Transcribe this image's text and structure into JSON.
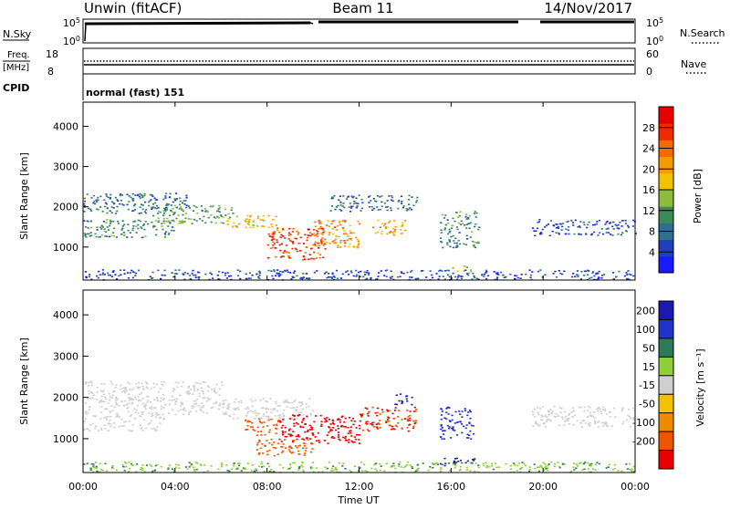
{
  "header": {
    "title_left": "Unwin (fitACF)",
    "title_center": "Beam 11",
    "title_right": "14/Nov/2017"
  },
  "strips": {
    "nsky_label": "N.Sky",
    "nsky_ticks": [
      "10^5",
      "10^0"
    ],
    "nsky_right_ticks": [
      "10^5",
      "10^0"
    ],
    "nsearch_label": "N.Search",
    "freq_label": "Freq.",
    "freq_unit": "[MHz]",
    "freq_ticks": [
      "18",
      "8"
    ],
    "nave_ticks": [
      "60",
      "0"
    ],
    "nave_label": "Nave",
    "cpid_label": "CPID",
    "cpid_value": "normal (fast) 151"
  },
  "colors": {
    "power_scale": [
      "#1a1aff",
      "#1f3fbf",
      "#2e6f8e",
      "#3a8a5a",
      "#8bbd3a",
      "#f2c200",
      "#f59a00",
      "#f46a00",
      "#ee2a00",
      "#e60000"
    ],
    "velocity_scale": [
      "#1a1ab0",
      "#2233cc",
      "#2c7a5a",
      "#8fcf3a",
      "#cfcfcf",
      "#f5c000",
      "#f28a00",
      "#ee5500",
      "#e60000"
    ]
  },
  "chart_data": [
    {
      "type": "heatmap",
      "panel": "power",
      "ylabel": "Slant Range [km]",
      "xlabel": "",
      "ylim": [
        180,
        4600
      ],
      "yticks": [
        "4000",
        "3000",
        "2000",
        "1000"
      ],
      "colorbar_label": "Power [dB]",
      "colorbar_ticks": [
        "28",
        "24",
        "20",
        "16",
        "12",
        "8",
        "4"
      ],
      "colorbar_range": [
        0,
        32
      ],
      "bands": [
        {
          "t0": 0.0,
          "t1": 4.5,
          "r0": 1850,
          "r1": 2350,
          "value": 8
        },
        {
          "t0": 0.0,
          "t1": 4.0,
          "r0": 1250,
          "r1": 1700,
          "value": 10
        },
        {
          "t0": 3.0,
          "t1": 6.5,
          "r0": 1600,
          "r1": 2050,
          "value": 12
        },
        {
          "t0": 6.0,
          "t1": 8.5,
          "r0": 1500,
          "r1": 1800,
          "value": 18
        },
        {
          "t0": 8.0,
          "t1": 10.5,
          "r0": 700,
          "r1": 1500,
          "value": 26
        },
        {
          "t0": 10.0,
          "t1": 12.0,
          "r0": 1000,
          "r1": 1700,
          "value": 22
        },
        {
          "t0": 10.5,
          "t1": 14.5,
          "r0": 1900,
          "r1": 2300,
          "value": 8
        },
        {
          "t0": 12.5,
          "t1": 14.0,
          "r0": 1300,
          "r1": 1700,
          "value": 20
        },
        {
          "t0": 15.5,
          "t1": 17.2,
          "r0": 1000,
          "r1": 1900,
          "value": 10
        },
        {
          "t0": 19.5,
          "t1": 24.0,
          "r0": 1300,
          "r1": 1700,
          "value": 6
        },
        {
          "t0": 16.0,
          "t1": 17.0,
          "r0": 350,
          "r1": 550,
          "value": 14
        },
        {
          "t0": 0.0,
          "t1": 24.0,
          "r0": 200,
          "r1": 450,
          "value": 5
        }
      ]
    },
    {
      "type": "heatmap",
      "panel": "velocity",
      "ylabel": "Slant Range [km]",
      "xlabel": "Time UT",
      "ylim": [
        180,
        4600
      ],
      "yticks": [
        "4000",
        "3000",
        "2000",
        "1000"
      ],
      "xticks": [
        "00:00",
        "04:00",
        "08:00",
        "12:00",
        "16:00",
        "20:00",
        "00:00"
      ],
      "colorbar_label": "Velocity [m s⁻¹]",
      "colorbar_ticks": [
        "200",
        "100",
        "50",
        "15",
        "-15",
        "-50",
        "-100",
        "-200"
      ],
      "bands": [
        {
          "t0": 0.0,
          "t1": 6.0,
          "r0": 1600,
          "r1": 2400,
          "value": 0
        },
        {
          "t0": 0.0,
          "t1": 3.5,
          "r0": 1200,
          "r1": 1600,
          "value": 0
        },
        {
          "t0": 6.0,
          "t1": 10.0,
          "r0": 1500,
          "r1": 2000,
          "value": 0
        },
        {
          "t0": 7.0,
          "t1": 8.5,
          "r0": 1100,
          "r1": 1500,
          "value": -120
        },
        {
          "t0": 7.5,
          "t1": 10.0,
          "r0": 600,
          "r1": 1000,
          "value": -80
        },
        {
          "t0": 8.5,
          "t1": 12.0,
          "r0": 900,
          "r1": 1600,
          "value": -200
        },
        {
          "t0": 12.0,
          "t1": 14.5,
          "r0": 1200,
          "r1": 1800,
          "value": -150
        },
        {
          "t0": 13.5,
          "t1": 14.3,
          "r0": 1800,
          "r1": 2100,
          "value": 220
        },
        {
          "t0": 15.5,
          "t1": 17.0,
          "r0": 1000,
          "r1": 1800,
          "value": 100
        },
        {
          "t0": 19.5,
          "t1": 24.0,
          "r0": 1300,
          "r1": 1800,
          "value": 0
        },
        {
          "t0": 15.5,
          "t1": 17.0,
          "r0": 350,
          "r1": 550,
          "value": 180
        },
        {
          "t0": 0.0,
          "t1": 24.0,
          "r0": 200,
          "r1": 450,
          "value": 30
        }
      ]
    }
  ]
}
